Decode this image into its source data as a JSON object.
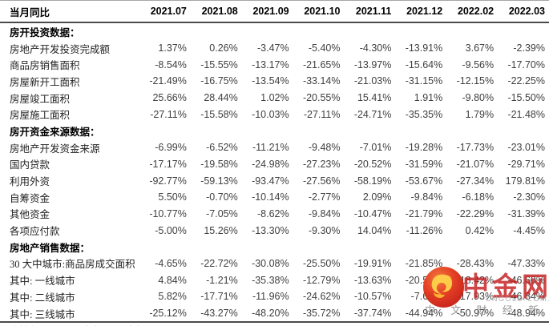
{
  "chart_data": {
    "type": "table",
    "title": "当月同比",
    "columns": [
      "2021.07",
      "2021.08",
      "2021.09",
      "2021.10",
      "2021.11",
      "2021.12",
      "2022.02",
      "2022.03"
    ],
    "sections": [
      {
        "title": "房开投资数据：",
        "rows": [
          {
            "label": "房地产开发投资完成额",
            "values": [
              "1.37%",
              "0.26%",
              "-3.47%",
              "-5.40%",
              "-4.30%",
              "-13.91%",
              "3.67%",
              "-2.39%"
            ]
          },
          {
            "label": "商品房销售面积",
            "values": [
              "-8.54%",
              "-15.55%",
              "-13.17%",
              "-21.65%",
              "-13.97%",
              "-15.64%",
              "-9.56%",
              "-17.70%"
            ]
          },
          {
            "label": "房屋新开工面积",
            "values": [
              "-21.49%",
              "-16.75%",
              "-13.54%",
              "-33.14%",
              "-21.03%",
              "-31.15%",
              "-12.15%",
              "-22.25%"
            ]
          },
          {
            "label": "房屋竣工面积",
            "values": [
              "25.66%",
              "28.44%",
              "1.02%",
              "-20.55%",
              "15.41%",
              "1.91%",
              "-9.80%",
              "-15.50%"
            ]
          },
          {
            "label": "房屋施工面积",
            "values": [
              "-27.11%",
              "-15.58%",
              "-10.03%",
              "-27.11%",
              "-24.71%",
              "-35.35%",
              "1.79%",
              "-21.48%"
            ]
          }
        ]
      },
      {
        "title": "房开资金来源数据：",
        "rows": [
          {
            "label": "房地产开发资金来源",
            "values": [
              "-6.99%",
              "-6.52%",
              "-11.21%",
              "-9.48%",
              "-7.01%",
              "-19.28%",
              "-17.73%",
              "-23.01%"
            ]
          },
          {
            "label": "国内贷款",
            "values": [
              "-17.17%",
              "-19.58%",
              "-24.98%",
              "-27.23%",
              "-20.52%",
              "-31.59%",
              "-21.07%",
              "-29.71%"
            ]
          },
          {
            "label": "利用外资",
            "values": [
              "-92.77%",
              "-59.13%",
              "-93.47%",
              "-27.56%",
              "-58.19%",
              "-53.67%",
              "-27.34%",
              "179.81%"
            ]
          },
          {
            "label": "自筹资金",
            "values": [
              "5.50%",
              "-0.70%",
              "-10.14%",
              "-2.77%",
              "2.09%",
              "-9.84%",
              "-6.18%",
              "-2.30%"
            ]
          },
          {
            "label": "其他资金",
            "values": [
              "-10.77%",
              "-7.05%",
              "-8.62%",
              "-9.84%",
              "-10.47%",
              "-21.79%",
              "-22.29%",
              "-31.39%"
            ]
          },
          {
            "label": "各项应付款",
            "values": [
              "-5.00%",
              "15.26%",
              "-13.30%",
              "-9.30%",
              "14.04%",
              "-11.26%",
              "0.42%",
              "-4.45%"
            ]
          }
        ]
      },
      {
        "title": "房地产销售数据：",
        "rows": [
          {
            "label": "30 大中城市:商品房成交面积",
            "values": [
              "-4.65%",
              "-22.72%",
              "-30.08%",
              "-25.50%",
              "-19.91%",
              "-21.85%",
              "-28.43%",
              "-47.33%"
            ]
          },
          {
            "label": "其中: 一线城市",
            "values": [
              "4.84%",
              "-1.21%",
              "-35.38%",
              "-12.79%",
              "-13.63%",
              "-20.55%",
              "-18.42%",
              "-46.60%"
            ]
          },
          {
            "label": "其中: 二线城市",
            "values": [
              "5.82%",
              "-17.71%",
              "-11.96%",
              "-24.62%",
              "-10.57%",
              "-7.68%",
              "-17.93%",
              "-46.84%"
            ]
          },
          {
            "label": "其中: 三线城市",
            "values": [
              "-25.12%",
              "-43.27%",
              "-48.20%",
              "-35.72%",
              "-37.74%",
              "-44.94%",
              "-50.97%",
              "-48.94%"
            ]
          }
        ]
      }
    ]
  },
  "watermark": {
    "brand": "中金网",
    "domain": "CNGOLD.COM.CN",
    "tagline": "中 文 财 经 新 媒 体",
    "brand_color": "#c61c1c",
    "logo_color": "#d92b17",
    "logo_swirl_color": "#ffd24a"
  },
  "footer": {
    "source_clipped": "资料来源：Wind，中金公司研究部"
  }
}
